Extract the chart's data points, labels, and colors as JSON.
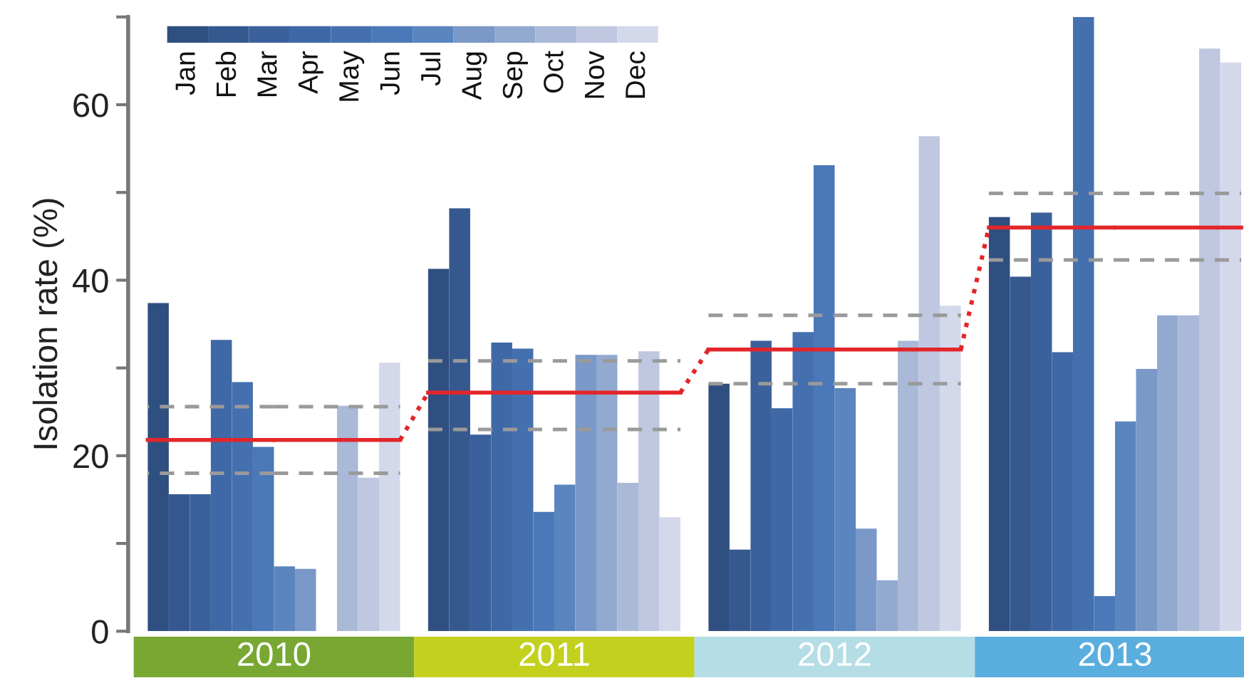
{
  "chart_data": {
    "type": "bar",
    "ylabel": "Isolation rate (%)",
    "categories": [
      "2010",
      "2011",
      "2012",
      "2013"
    ],
    "series": [
      {
        "name": "Jan",
        "color": "#2f4f80",
        "values": [
          37.4,
          41.3,
          28.2,
          47.2
        ]
      },
      {
        "name": "Feb",
        "color": "#35598f",
        "values": [
          15.6,
          48.2,
          9.3,
          40.4
        ]
      },
      {
        "name": "Mar",
        "color": "#3a619b",
        "values": [
          15.6,
          22.4,
          33.1,
          47.7
        ]
      },
      {
        "name": "Apr",
        "color": "#3f68a6",
        "values": [
          33.2,
          32.9,
          25.4,
          31.8
        ]
      },
      {
        "name": "May",
        "color": "#4470b0",
        "values": [
          28.4,
          32.2,
          34.1,
          70
        ]
      },
      {
        "name": "Jun",
        "color": "#4a78b8",
        "values": [
          21.0,
          13.6,
          53.1,
          4.0
        ]
      },
      {
        "name": "Jul",
        "color": "#5a85bf",
        "values": [
          7.4,
          16.7,
          27.7,
          23.9
        ]
      },
      {
        "name": "Aug",
        "color": "#7a98c8",
        "values": [
          7.1,
          31.5,
          11.7,
          29.9
        ]
      },
      {
        "name": "Sep",
        "color": "#93aad0",
        "values": [
          null,
          31.5,
          5.8,
          36.0
        ]
      },
      {
        "name": "Oct",
        "color": "#aab9d8",
        "values": [
          25.7,
          16.9,
          33.1,
          36.0
        ]
      },
      {
        "name": "Nov",
        "color": "#bfc8e0",
        "values": [
          17.5,
          31.9,
          56.4,
          66.4
        ]
      },
      {
        "name": "Dec",
        "color": "#d3d9ea",
        "values": [
          30.6,
          13.0,
          37.1,
          64.8
        ]
      },
      {
        "type": "step",
        "color": "#e3262a",
        "line_style": "solid",
        "values": [
          21.8,
          27.2,
          32.1,
          46.0
        ]
      },
      {
        "type": "step",
        "color": "#9a9a9a",
        "line_style": "dashed",
        "values": [
          25.6,
          30.8,
          36.0,
          49.9
        ]
      },
      {
        "type": "step",
        "color": "#9a9a9a",
        "line_style": "dashed",
        "values": [
          18.0,
          23.0,
          28.2,
          42.3
        ]
      }
    ],
    "ylim": [
      0,
      70
    ],
    "yticks": [
      0,
      {
        "value": 10,
        "label": null
      },
      20,
      {
        "value": 30,
        "label": null
      },
      40,
      {
        "value": 50,
        "label": null
      },
      60,
      {
        "value": 70,
        "label": null
      }
    ],
    "legend": "top left",
    "grid": false
  }
}
